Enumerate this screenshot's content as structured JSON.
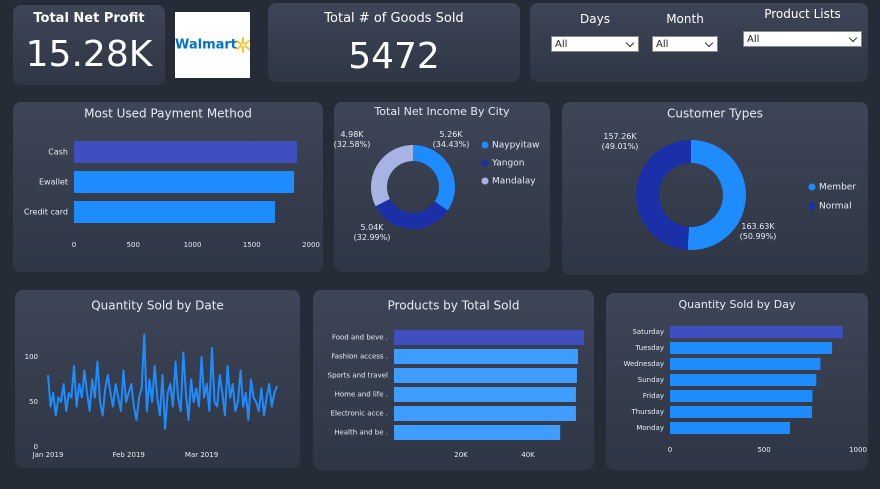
{
  "logo": "Walmart",
  "kpis": [
    {
      "label": "Total Net Profit",
      "value": "15.28K"
    },
    {
      "label": "Total # of Goods Sold",
      "value": 5472
    }
  ],
  "filters": [
    {
      "label": "Days",
      "value": "All"
    },
    {
      "label": "Month",
      "value": "All"
    },
    {
      "label": "Product Lists",
      "value": "All"
    }
  ],
  "chart_data": [
    {
      "type": "bar",
      "orientation": "horizontal",
      "title": "Most Used Payment Method",
      "categories": [
        "Cash",
        "Ewallet",
        "Credit card"
      ],
      "values": [
        1882,
        1857,
        1696
      ],
      "colors": [
        "#3f4fbf",
        "#1e8cff",
        "#1e8cff"
      ],
      "xlim": [
        0,
        2000
      ],
      "xticks": [
        0,
        500,
        1000,
        1500,
        2000
      ]
    },
    {
      "type": "donut",
      "title": "Total Net Income By City",
      "categories": [
        "Naypyitaw",
        "Yangon",
        "Mandalay"
      ],
      "values": [
        5260,
        5040,
        4980
      ],
      "value_labels": [
        "5.26K (34.43%)",
        "5.04K (32.99%)",
        "4.98K (32.58%)"
      ],
      "colors": [
        "#1e8cff",
        "#1a2fa8",
        "#a7b3e2"
      ]
    },
    {
      "type": "donut",
      "title": "Customer Types",
      "categories": [
        "Member",
        "Normal"
      ],
      "values": [
        163630,
        157260
      ],
      "value_labels": [
        "163.63K (50.99%)",
        "157.26K (49.01%)"
      ],
      "colors": [
        "#1e8cff",
        "#1a2fa8"
      ]
    },
    {
      "type": "line",
      "title": "Quantity Sold by Date",
      "color": "#1e8cff",
      "values": [
        80,
        45,
        60,
        35,
        55,
        50,
        70,
        40,
        60,
        55,
        90,
        45,
        70,
        55,
        85,
        60,
        40,
        75,
        55,
        95,
        50,
        35,
        65,
        80,
        60,
        45,
        70,
        55,
        40,
        85,
        50,
        60,
        70,
        45,
        30,
        55,
        65,
        125,
        40,
        75,
        50,
        90,
        55,
        35,
        80,
        20,
        60,
        70,
        45,
        95,
        55,
        40,
        105,
        60,
        30,
        75,
        50,
        65,
        45,
        100,
        55,
        70,
        40,
        110,
        50,
        45,
        80,
        60,
        35,
        90,
        55,
        70,
        40,
        50,
        85,
        45,
        60,
        30,
        75,
        55,
        50,
        40,
        65,
        35,
        55,
        70,
        45,
        60,
        68
      ],
      "xlim": [
        0,
        88
      ],
      "xticks": [
        {
          "value": 0,
          "label": "Jan 2019"
        },
        {
          "value": 31,
          "label": "Feb 2019"
        },
        {
          "value": 59,
          "label": "Mar 2019"
        }
      ],
      "ylim": [
        0,
        130
      ],
      "yticks": [
        0,
        50,
        100
      ]
    },
    {
      "type": "bar",
      "orientation": "horizontal",
      "title": "Products by Total Sold",
      "categories": [
        "Food and beve .",
        "Fashion access .",
        "Sports and travel",
        "Home and life .",
        "Electronic acce .",
        "Health and be ."
      ],
      "values": [
        56700,
        54900,
        54600,
        54300,
        54300,
        49600
      ],
      "colors": [
        "#3f4fbf",
        "#3f9dff",
        "#3f9dff",
        "#3f9dff",
        "#3f9dff",
        "#3f9dff"
      ],
      "xlim": [
        0,
        58500
      ],
      "xticks": [
        {
          "value": 20000,
          "label": "20K"
        },
        {
          "value": 40000,
          "label": "40K"
        }
      ]
    },
    {
      "type": "bar",
      "orientation": "horizontal",
      "title": "Quantity Sold by Day",
      "categories": [
        "Saturday",
        "Tuesday",
        "Wednesday",
        "Sunday",
        "Friday",
        "Thursday",
        "Monday"
      ],
      "values": [
        919,
        862,
        800,
        778,
        758,
        755,
        638
      ],
      "colors": [
        "#3f4fbf",
        "#1e8cff",
        "#1e8cff",
        "#1e8cff",
        "#1e8cff",
        "#1e8cff",
        "#1e8cff"
      ],
      "xlim": [
        0,
        1000
      ],
      "xticks": [
        0,
        500,
        1000
      ]
    }
  ]
}
